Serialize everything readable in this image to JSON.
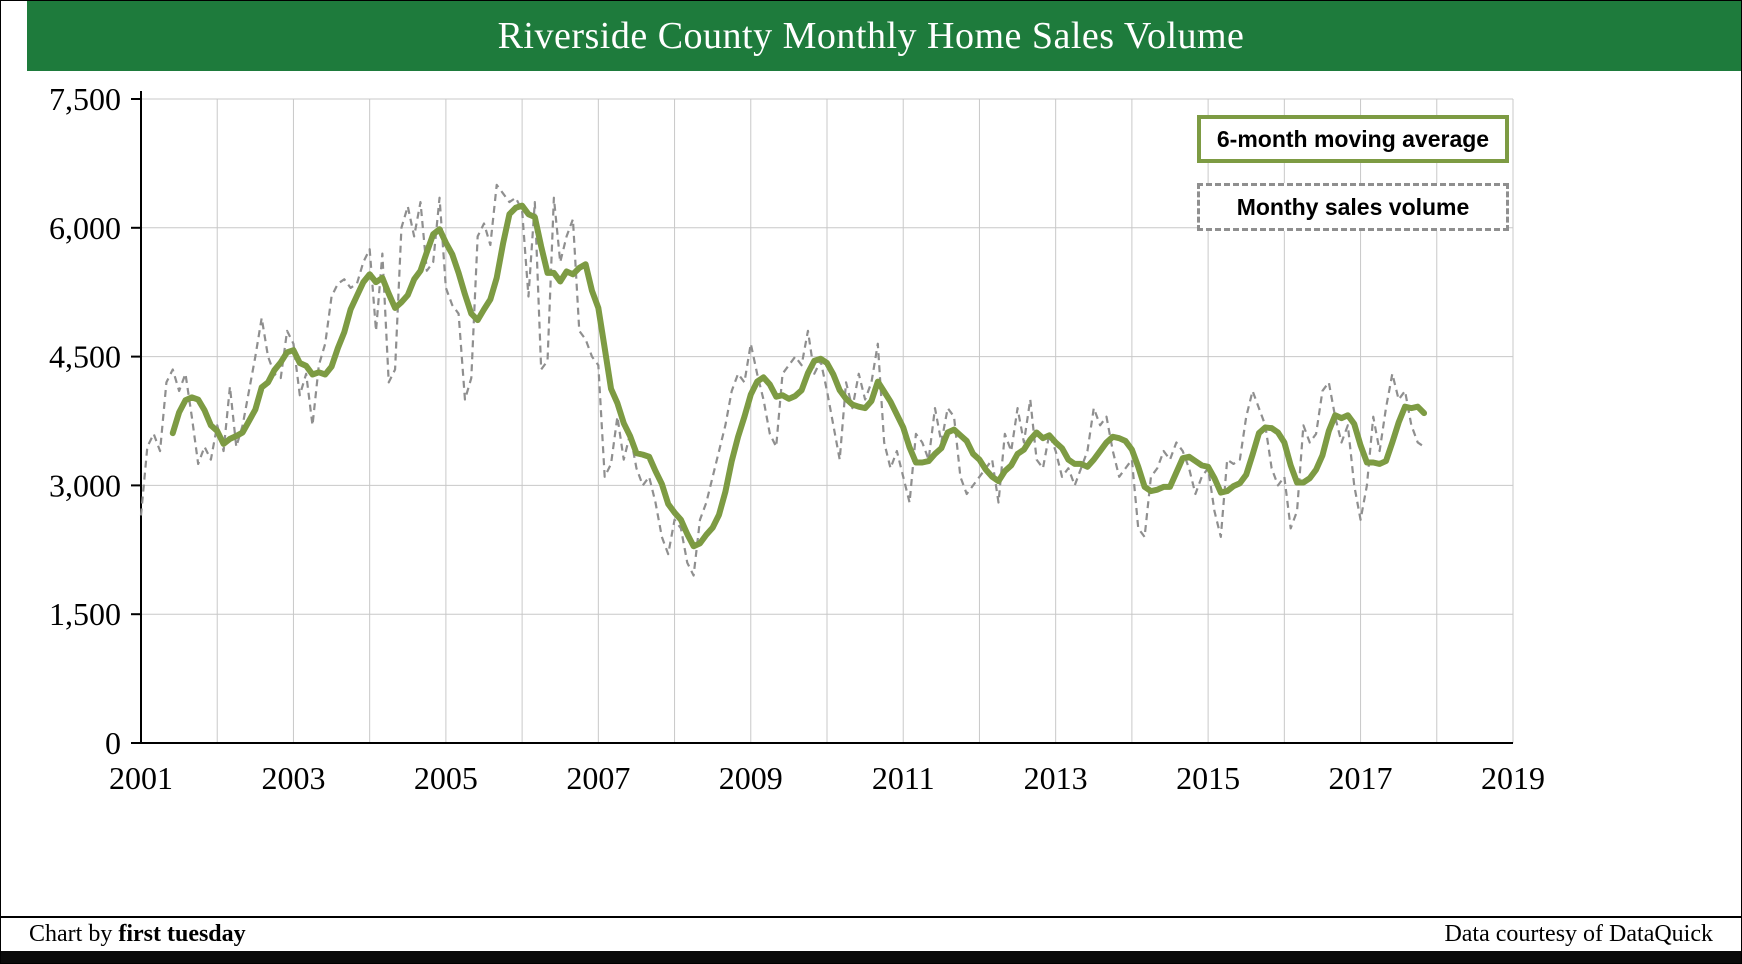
{
  "header": {
    "title": "Riverside County Monthly Home Sales Volume"
  },
  "legend": {
    "ma_label": "6-month moving average",
    "monthly_label": "Monthy sales volume"
  },
  "footer": {
    "left_prefix": "Chart by ",
    "left_brand": "first tuesday",
    "right_text": "Data courtesy of DataQuick"
  },
  "colors": {
    "header_bg": "#1e7b3c",
    "ma_line": "#7d9b43",
    "monthly_line": "#8f8f8f",
    "grid": "#c8c8c8",
    "axis": "#000000"
  },
  "chart_data": {
    "type": "line",
    "title": "Riverside County Monthly Home Sales Volume",
    "xlabel": "",
    "ylabel": "",
    "xlim": [
      2001,
      2019
    ],
    "ylim": [
      0,
      7500
    ],
    "y_ticks": [
      0,
      1500,
      3000,
      4500,
      6000,
      7500
    ],
    "x_tick_years": [
      2001,
      2003,
      2005,
      2007,
      2009,
      2011,
      2013,
      2015,
      2017,
      2019
    ],
    "grid": true,
    "gridlines_vertical_every_years": 1,
    "legend_position": "top-right",
    "series": [
      {
        "name": "Monthy sales volume",
        "style": "dashed-gray",
        "start_year": 2001,
        "start_month": 1,
        "values": [
          2650,
          3450,
          3600,
          3400,
          4200,
          4350,
          4100,
          4300,
          3800,
          3250,
          3450,
          3300,
          3700,
          3400,
          4150,
          3450,
          3700,
          4100,
          4500,
          4950,
          4500,
          4300,
          4250,
          4800,
          4650,
          4050,
          4300,
          3700,
          4400,
          4650,
          5200,
          5350,
          5400,
          5300,
          5350,
          5600,
          5750,
          4800,
          5700,
          4200,
          4350,
          6000,
          6250,
          5900,
          6300,
          5500,
          5600,
          6350,
          5300,
          5100,
          5000,
          4000,
          4250,
          5900,
          6050,
          5800,
          6500,
          6400,
          6300,
          6350,
          6200,
          5200,
          6300,
          4350,
          4450,
          6350,
          5600,
          5900,
          6100,
          4800,
          4700,
          4500,
          4400,
          3100,
          3250,
          3800,
          3300,
          3600,
          3200,
          3000,
          3100,
          2800,
          2400,
          2200,
          2600,
          2500,
          2100,
          1950,
          2600,
          2800,
          3100,
          3400,
          3700,
          4100,
          4300,
          4200,
          4650,
          4300,
          4000,
          3600,
          3450,
          4300,
          4400,
          4500,
          4400,
          4800,
          4300,
          4450,
          4100,
          3700,
          3300,
          4200,
          3900,
          4300,
          4000,
          4200,
          4650,
          3500,
          3200,
          3400,
          3100,
          2800,
          3600,
          3500,
          3300,
          3900,
          3500,
          3900,
          3800,
          3100,
          2900,
          3000,
          3100,
          3200,
          3300,
          2800,
          3600,
          3400,
          3900,
          3500,
          4000,
          3300,
          3200,
          3600,
          3400,
          3100,
          3200,
          3000,
          3200,
          3400,
          3900,
          3700,
          3800,
          3400,
          3100,
          3200,
          3300,
          2500,
          2400,
          3100,
          3200,
          3400,
          3300,
          3500,
          3400,
          3200,
          2900,
          3100,
          3200,
          2700,
          2400,
          3300,
          3250,
          3300,
          3800,
          4100,
          3900,
          3700,
          3200,
          3000,
          3100,
          2500,
          2700,
          3700,
          3500,
          3600,
          4100,
          4200,
          3800,
          3500,
          3700,
          3000,
          2600,
          3000,
          3800,
          3400,
          3900,
          4300,
          4000,
          4100,
          3700,
          3500,
          3450
        ]
      },
      {
        "name": "6-month moving average",
        "style": "solid-green",
        "derived_from": "Monthy sales volume",
        "derivation": "trailing 6-month mean of monthly sales values"
      }
    ]
  }
}
